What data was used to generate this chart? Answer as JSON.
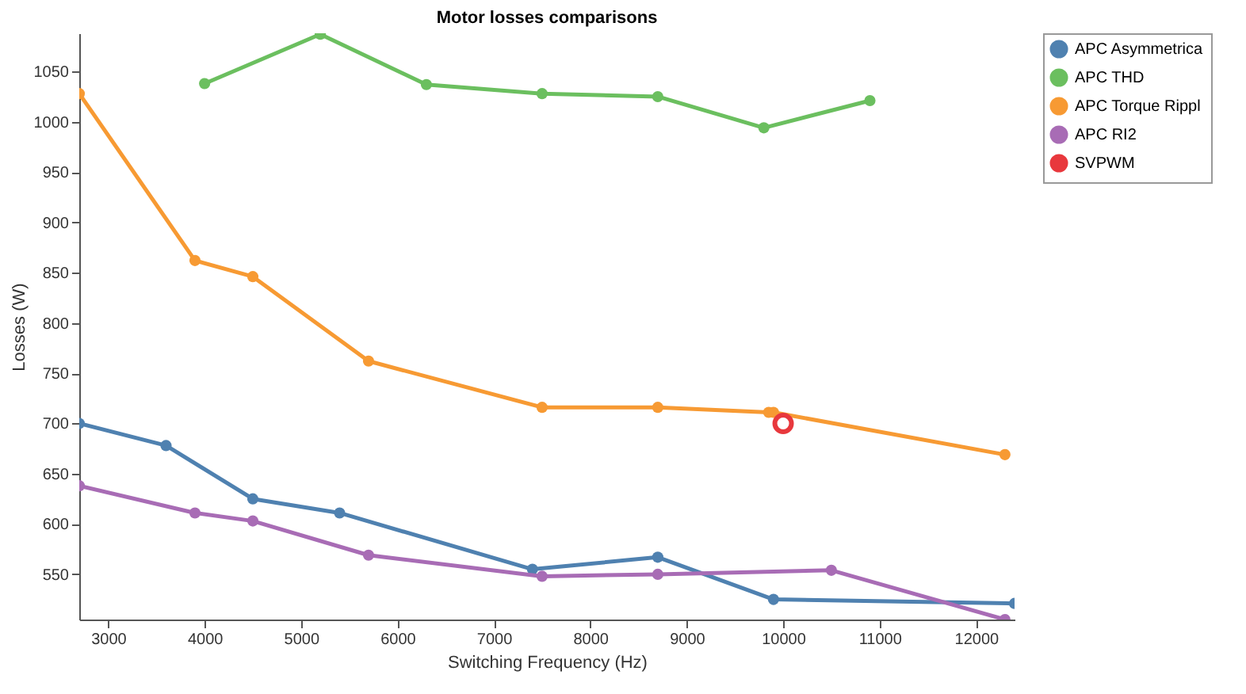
{
  "chart_data": {
    "type": "line",
    "title": "Motor losses comparisons",
    "xlabel": "Switching Frequency (Hz)",
    "ylabel": "Losses (W)",
    "xlim": [
      2700,
      12400
    ],
    "ylim": [
      505,
      1088
    ],
    "xticks": [
      3000,
      4000,
      5000,
      6000,
      7000,
      8000,
      9000,
      10000,
      11000,
      12000
    ],
    "yticks": [
      550,
      600,
      650,
      700,
      750,
      800,
      850,
      900,
      950,
      1000,
      1050
    ],
    "grid": false,
    "legend": "top right",
    "marker": "circle",
    "line_style": "solid",
    "series": [
      {
        "name": "APC Asymmetrica",
        "color": "#4f81b0",
        "x": [
          2700,
          3600,
          4500,
          5400,
          7400,
          8700,
          9900,
          12400
        ],
        "values": [
          700,
          678,
          625,
          611,
          555,
          567,
          525,
          521
        ]
      },
      {
        "name": "APC THD",
        "color": "#6bbf5f",
        "x": [
          4000,
          5200,
          6300,
          7500,
          8700,
          9800,
          10900
        ],
        "values": [
          1038,
          1087,
          1037,
          1028,
          1025,
          994,
          1021
        ]
      },
      {
        "name": "APC Torque Rippl",
        "color": "#f79a33",
        "x": [
          2700,
          3900,
          4500,
          5700,
          7500,
          8700,
          9850,
          9900,
          12300
        ],
        "values": [
          1028,
          862,
          846,
          762,
          716,
          716,
          711,
          711,
          669
        ]
      },
      {
        "name": "APC RI2",
        "color": "#a86cb5",
        "x": [
          2700,
          3900,
          4500,
          5700,
          7500,
          8700,
          10500,
          12300
        ],
        "values": [
          638,
          611,
          603,
          569,
          548,
          550,
          554,
          505
        ]
      },
      {
        "name": "SVPWM",
        "color": "#e8383d",
        "type": "scatter",
        "x": [
          10000
        ],
        "values": [
          700
        ]
      }
    ]
  }
}
